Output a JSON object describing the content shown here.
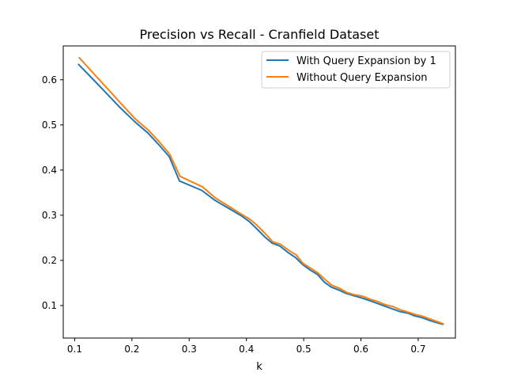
{
  "chart_data": {
    "type": "line",
    "title": "Precision vs Recall - Cranfield Dataset",
    "xlabel": "k",
    "ylabel": "",
    "xlim": [
      0.08,
      0.765
    ],
    "ylim": [
      0.028,
      0.675
    ],
    "xticks": [
      0.1,
      0.2,
      0.3,
      0.4,
      0.5,
      0.6,
      0.7
    ],
    "xtick_labels": [
      "0.1",
      "0.2",
      "0.3",
      "0.4",
      "0.5",
      "0.6",
      "0.7"
    ],
    "yticks": [
      0.1,
      0.2,
      0.3,
      0.4,
      0.5,
      0.6
    ],
    "ytick_labels": [
      "0.1",
      "0.2",
      "0.3",
      "0.4",
      "0.5",
      "0.6"
    ],
    "grid": false,
    "legend_position": "top-right",
    "series": [
      {
        "name": "With Query Expansion by 1",
        "color": "#1f77b4",
        "x": [
          0.106,
          0.142,
          0.178,
          0.205,
          0.228,
          0.247,
          0.265,
          0.283,
          0.322,
          0.345,
          0.368,
          0.392,
          0.405,
          0.418,
          0.432,
          0.445,
          0.458,
          0.472,
          0.486,
          0.498,
          0.512,
          0.524,
          0.536,
          0.548,
          0.562,
          0.574,
          0.587,
          0.601,
          0.615,
          0.628,
          0.641,
          0.654,
          0.667,
          0.682,
          0.694,
          0.707,
          0.72,
          0.733,
          0.744
        ],
        "y": [
          0.635,
          0.588,
          0.54,
          0.507,
          0.482,
          0.456,
          0.43,
          0.376,
          0.355,
          0.333,
          0.316,
          0.298,
          0.286,
          0.27,
          0.252,
          0.238,
          0.232,
          0.218,
          0.206,
          0.191,
          0.178,
          0.169,
          0.152,
          0.141,
          0.134,
          0.127,
          0.122,
          0.117,
          0.111,
          0.105,
          0.099,
          0.093,
          0.087,
          0.083,
          0.077,
          0.073,
          0.067,
          0.062,
          0.058
        ]
      },
      {
        "name": "Without Query Expansion",
        "color": "#ff7f0e",
        "x": [
          0.107,
          0.143,
          0.179,
          0.206,
          0.229,
          0.248,
          0.266,
          0.284,
          0.323,
          0.346,
          0.369,
          0.393,
          0.406,
          0.419,
          0.433,
          0.446,
          0.459,
          0.473,
          0.487,
          0.499,
          0.513,
          0.525,
          0.537,
          0.549,
          0.563,
          0.575,
          0.588,
          0.602,
          0.616,
          0.629,
          0.642,
          0.655,
          0.668,
          0.683,
          0.695,
          0.708,
          0.721,
          0.734,
          0.745
        ],
        "y": [
          0.65,
          0.6,
          0.55,
          0.513,
          0.488,
          0.462,
          0.435,
          0.386,
          0.363,
          0.338,
          0.32,
          0.301,
          0.291,
          0.277,
          0.259,
          0.241,
          0.236,
          0.223,
          0.212,
          0.193,
          0.182,
          0.172,
          0.158,
          0.145,
          0.138,
          0.129,
          0.124,
          0.121,
          0.114,
          0.109,
          0.102,
          0.098,
          0.091,
          0.085,
          0.08,
          0.076,
          0.07,
          0.064,
          0.059
        ]
      }
    ]
  }
}
